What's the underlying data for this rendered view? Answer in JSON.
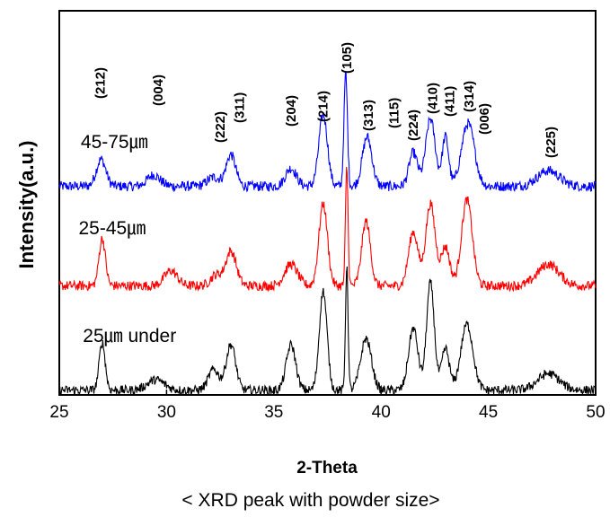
{
  "chart_data": {
    "type": "line",
    "xlabel": "2-Theta",
    "ylabel": "Intensity(a.u.)",
    "caption": "< XRD peak with  powder size>",
    "xlim": [
      25,
      50
    ],
    "x_ticks": [
      "25",
      "30",
      "35",
      "40",
      "45",
      "50"
    ],
    "y_ticks_shown": false,
    "grid": false,
    "peak_labels": [
      {
        "label": "(212)",
        "two_theta": 26.9
      },
      {
        "label": "(004)",
        "two_theta": 29.6
      },
      {
        "label": "(222)",
        "two_theta": 32.5
      },
      {
        "label": "(311)",
        "two_theta": 33.4
      },
      {
        "label": "(204)",
        "two_theta": 35.8
      },
      {
        "label": "(214)",
        "two_theta": 37.3
      },
      {
        "label": "(105)",
        "two_theta": 38.4
      },
      {
        "label": "(313)",
        "two_theta": 39.4
      },
      {
        "label": "(115)",
        "two_theta": 40.6
      },
      {
        "label": "(224)",
        "two_theta": 41.5
      },
      {
        "label": "(410)",
        "two_theta": 42.4
      },
      {
        "label": "(411)",
        "two_theta": 43.2
      },
      {
        "label": "(314)",
        "two_theta": 44.1
      },
      {
        "label": "(006)",
        "two_theta": 44.8
      },
      {
        "label": "(225)",
        "two_theta": 47.9
      }
    ],
    "series": [
      {
        "name": "45-75㎛",
        "color": "#0000ff",
        "baseline": 0.18,
        "label_at": 26.0,
        "peaks": [
          {
            "x": 26.95,
            "h": 0.12,
            "w": 0.22
          },
          {
            "x": 29.4,
            "h": 0.05,
            "w": 0.3
          },
          {
            "x": 32.2,
            "h": 0.04,
            "w": 0.3
          },
          {
            "x": 33.0,
            "h": 0.14,
            "w": 0.22
          },
          {
            "x": 35.8,
            "h": 0.08,
            "w": 0.25
          },
          {
            "x": 37.3,
            "h": 0.32,
            "w": 0.2
          },
          {
            "x": 38.35,
            "h": 0.5,
            "w": 0.08
          },
          {
            "x": 39.35,
            "h": 0.22,
            "w": 0.22
          },
          {
            "x": 41.5,
            "h": 0.15,
            "w": 0.2
          },
          {
            "x": 42.3,
            "h": 0.3,
            "w": 0.22
          },
          {
            "x": 43.0,
            "h": 0.22,
            "w": 0.15
          },
          {
            "x": 44.05,
            "h": 0.28,
            "w": 0.3
          },
          {
            "x": 47.8,
            "h": 0.07,
            "w": 0.5
          }
        ]
      },
      {
        "name": "25-45㎛",
        "color": "#ff0000",
        "baseline": 0.15,
        "label_at": 25.9,
        "peaks": [
          {
            "x": 27.0,
            "h": 0.22,
            "w": 0.15
          },
          {
            "x": 30.2,
            "h": 0.07,
            "w": 0.3
          },
          {
            "x": 32.3,
            "h": 0.05,
            "w": 0.25
          },
          {
            "x": 33.0,
            "h": 0.16,
            "w": 0.25
          },
          {
            "x": 35.8,
            "h": 0.1,
            "w": 0.3
          },
          {
            "x": 37.3,
            "h": 0.38,
            "w": 0.2
          },
          {
            "x": 38.4,
            "h": 0.55,
            "w": 0.06
          },
          {
            "x": 39.3,
            "h": 0.3,
            "w": 0.2
          },
          {
            "x": 41.5,
            "h": 0.25,
            "w": 0.22
          },
          {
            "x": 42.3,
            "h": 0.38,
            "w": 0.22
          },
          {
            "x": 43.0,
            "h": 0.18,
            "w": 0.2
          },
          {
            "x": 44.0,
            "h": 0.4,
            "w": 0.25
          },
          {
            "x": 47.8,
            "h": 0.1,
            "w": 0.5
          }
        ]
      },
      {
        "name": "25㎛ under",
        "color": "#000000",
        "baseline": 0.1,
        "label_at": 26.1,
        "peaks": [
          {
            "x": 27.0,
            "h": 0.23,
            "w": 0.14
          },
          {
            "x": 29.5,
            "h": 0.05,
            "w": 0.4
          },
          {
            "x": 32.2,
            "h": 0.1,
            "w": 0.25
          },
          {
            "x": 33.0,
            "h": 0.22,
            "w": 0.22
          },
          {
            "x": 35.8,
            "h": 0.22,
            "w": 0.22
          },
          {
            "x": 37.3,
            "h": 0.48,
            "w": 0.18
          },
          {
            "x": 38.4,
            "h": 0.6,
            "w": 0.06
          },
          {
            "x": 39.3,
            "h": 0.25,
            "w": 0.25
          },
          {
            "x": 41.5,
            "h": 0.3,
            "w": 0.22
          },
          {
            "x": 42.3,
            "h": 0.52,
            "w": 0.18
          },
          {
            "x": 43.0,
            "h": 0.2,
            "w": 0.18
          },
          {
            "x": 44.0,
            "h": 0.32,
            "w": 0.28
          },
          {
            "x": 47.8,
            "h": 0.08,
            "w": 0.5
          }
        ]
      }
    ]
  }
}
